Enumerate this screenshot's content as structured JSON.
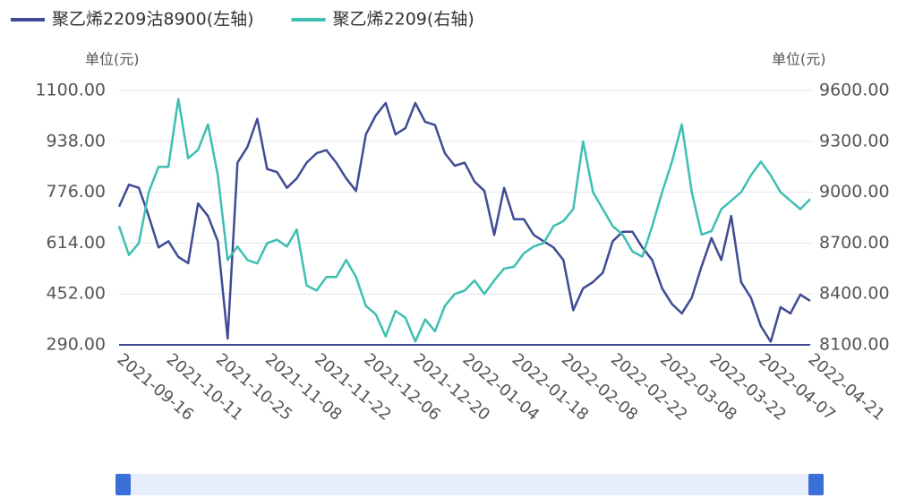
{
  "chart_data": {
    "type": "line",
    "legend_position": "top",
    "y_label": "单位(元)",
    "y2_label": "单位(元)",
    "categories": [
      "2021-09-16",
      null,
      null,
      null,
      null,
      "2021-10-11",
      null,
      null,
      null,
      null,
      "2021-10-25",
      null,
      null,
      null,
      null,
      "2021-11-08",
      null,
      null,
      null,
      null,
      "2021-11-22",
      null,
      null,
      null,
      null,
      "2021-12-06",
      null,
      null,
      null,
      null,
      "2021-12-20",
      null,
      null,
      null,
      null,
      "2022-01-04",
      null,
      null,
      null,
      null,
      "2022-01-18",
      null,
      null,
      null,
      null,
      "2022-02-08",
      null,
      null,
      null,
      null,
      "2022-02-22",
      null,
      null,
      null,
      null,
      "2022-03-08",
      null,
      null,
      null,
      null,
      "2022-03-22",
      null,
      null,
      null,
      null,
      "2022-04-07",
      null,
      null,
      null,
      null,
      "2022-04-21"
    ],
    "series": [
      {
        "name": "聚乙烯2209沽8900(左轴)",
        "color": "#3f4b94",
        "axis": "y",
        "values": [
          730,
          800,
          790,
          700,
          600,
          620,
          570,
          550,
          740,
          700,
          620,
          310,
          870,
          920,
          1010,
          850,
          840,
          790,
          820,
          870,
          900,
          910,
          870,
          820,
          780,
          960,
          1020,
          1060,
          960,
          980,
          1060,
          1000,
          990,
          900,
          860,
          870,
          810,
          780,
          640,
          790,
          690,
          690,
          640,
          620,
          600,
          560,
          400,
          470,
          490,
          520,
          620,
          650,
          650,
          600,
          560,
          470,
          420,
          390,
          440,
          540,
          630,
          560,
          700,
          490,
          440,
          350,
          300,
          410,
          390,
          450,
          430
        ]
      },
      {
        "name": "聚乙烯2209(右轴)",
        "color": "#3dbfb1",
        "axis": "y2",
        "values": [
          8800,
          8630,
          8700,
          9000,
          9150,
          9150,
          9550,
          9200,
          9250,
          9400,
          9100,
          8600,
          8680,
          8600,
          8580,
          8700,
          8720,
          8680,
          8780,
          8450,
          8420,
          8500,
          8500,
          8600,
          8500,
          8330,
          8280,
          8150,
          8300,
          8260,
          8120,
          8250,
          8180,
          8330,
          8400,
          8420,
          8480,
          8400,
          8480,
          8550,
          8560,
          8640,
          8680,
          8700,
          8800,
          8830,
          8900,
          9300,
          9000,
          8900,
          8800,
          8750,
          8650,
          8620,
          8800,
          9000,
          9180,
          9400,
          9000,
          8750,
          8770,
          8900,
          8950,
          9000,
          9100,
          9180,
          9100,
          9000,
          8950,
          8900,
          8960
        ]
      }
    ],
    "ylim": [
      290,
      1100
    ],
    "yticks": [
      {
        "value": 290,
        "label": "290.00"
      },
      {
        "value": 452,
        "label": "452.00"
      },
      {
        "value": 614,
        "label": "614.00"
      },
      {
        "value": 776,
        "label": "776.00"
      },
      {
        "value": 938,
        "label": "938.00"
      },
      {
        "value": 1100,
        "label": "1100.00"
      }
    ],
    "y2lim": [
      8100,
      9600
    ],
    "y2ticks": [
      {
        "value": 8100,
        "label": "8100.00"
      },
      {
        "value": 8400,
        "label": "8400.00"
      },
      {
        "value": 8700,
        "label": "8700.00"
      },
      {
        "value": 9000,
        "label": "9000.00"
      },
      {
        "value": 9300,
        "label": "9300.00"
      },
      {
        "value": 9600,
        "label": "9600.00"
      }
    ],
    "grid": true
  }
}
